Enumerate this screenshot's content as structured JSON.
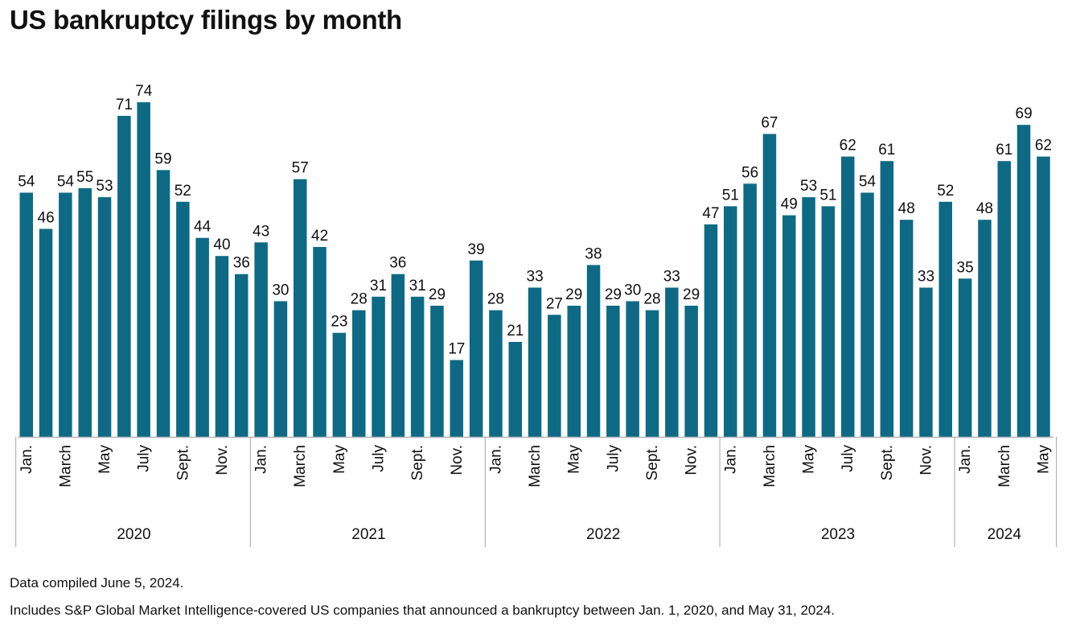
{
  "title": "US bankruptcy filings by month",
  "notes": {
    "compiled": "Data compiled June 5, 2024.",
    "includes": "Includes S&P Global Market Intelligence-covered US companies that announced a bankruptcy between Jan. 1, 2020, and May 31, 2024."
  },
  "colors": {
    "bar": "#0e6a84",
    "axis": "#b3b3b3",
    "text": "#111111"
  },
  "chart_data": {
    "type": "bar",
    "title": "US bankruptcy filings by month",
    "xlabel": "",
    "ylabel": "",
    "ylim": [
      0,
      80
    ],
    "grid": false,
    "legend": "none",
    "values": [
      54,
      46,
      54,
      55,
      53,
      71,
      74,
      59,
      52,
      44,
      40,
      36,
      43,
      30,
      57,
      42,
      23,
      28,
      31,
      36,
      31,
      29,
      17,
      39,
      28,
      21,
      33,
      27,
      29,
      38,
      29,
      30,
      28,
      33,
      29,
      47,
      51,
      56,
      67,
      49,
      53,
      51,
      62,
      54,
      61,
      48,
      33,
      52,
      35,
      48,
      61,
      69,
      62
    ],
    "month_tick_labels": [
      [
        "Jan.",
        "March",
        "May",
        "July",
        "Sept.",
        "Nov."
      ],
      [
        "Jan.",
        "March",
        "May",
        "July",
        "Sept.",
        "Nov."
      ],
      [
        "Jan.",
        "March",
        "May",
        "July",
        "Sept.",
        "Nov."
      ],
      [
        "Jan.",
        "March",
        "May",
        "July",
        "Sept.",
        "Nov."
      ],
      [
        "Jan.",
        "March",
        "May"
      ]
    ],
    "years": [
      {
        "label": "2020",
        "months": 12
      },
      {
        "label": "2021",
        "months": 12
      },
      {
        "label": "2022",
        "months": 12
      },
      {
        "label": "2023",
        "months": 12
      },
      {
        "label": "2024",
        "months": 5
      }
    ]
  }
}
